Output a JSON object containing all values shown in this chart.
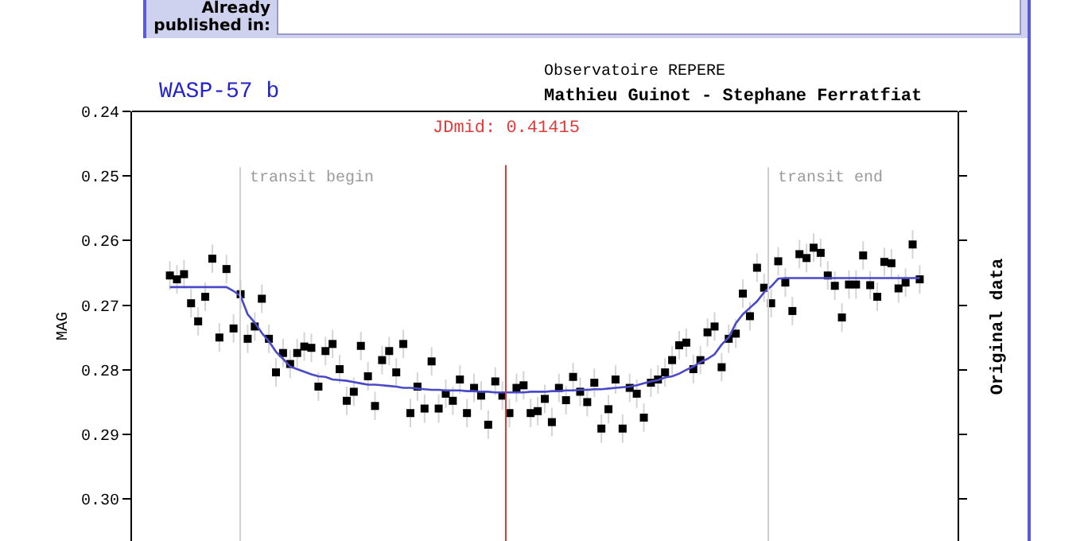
{
  "chart_data": {
    "type": "scatter",
    "title": "WASP-57 b",
    "ylabel": "MAG",
    "y2label": "Original data",
    "annotations": [
      "Already published in:",
      "Observatoire REPERE",
      "Mathieu Guinot - Stephane Ferratfiat",
      "JDmid: 0.41415",
      "transit begin",
      "transit end"
    ],
    "categories": [
      null,
      null,
      null,
      null,
      null,
      null,
      null,
      null,
      null,
      null,
      null,
      null,
      null,
      null,
      null,
      null,
      null,
      null,
      null,
      null,
      null,
      null,
      null,
      null,
      null,
      null,
      null,
      null,
      null,
      null,
      null,
      null,
      null,
      null,
      null,
      null,
      null,
      null,
      null,
      null,
      null,
      null,
      null,
      null,
      null,
      null,
      null,
      null,
      null,
      null,
      null,
      null,
      null,
      null,
      null,
      null,
      null,
      null,
      null,
      null,
      null,
      null,
      null,
      null,
      null,
      null,
      null,
      null,
      null,
      null,
      null,
      null,
      null,
      null,
      null,
      null,
      null,
      null,
      null,
      null,
      null,
      null,
      null,
      null,
      null,
      null,
      null,
      null,
      null,
      null,
      null,
      null,
      null,
      null,
      null,
      null,
      null,
      null,
      null,
      null,
      null,
      null,
      null,
      null,
      null,
      null,
      null
    ],
    "series": [
      {
        "color": "#000000",
        "values": [
          0.2654,
          0.266,
          0.2652,
          0.2697,
          0.2725,
          0.2687,
          0.2628,
          0.275,
          0.2644,
          0.2736,
          0.2683,
          0.2752,
          0.2733,
          0.269,
          0.2752,
          0.2804,
          0.2774,
          0.2791,
          0.2774,
          0.2764,
          0.2766,
          0.2826,
          0.2771,
          0.276,
          0.2799,
          0.2848,
          0.2834,
          0.2763,
          0.281,
          0.2856,
          0.2785,
          0.2771,
          0.2804,
          0.276,
          0.2867,
          0.2826,
          0.286,
          0.2787,
          0.286,
          0.2837,
          0.2848,
          0.2815,
          0.2867,
          0.2828,
          0.284,
          0.2885,
          0.2818,
          0.284,
          0.2867,
          0.2828,
          0.2824,
          0.2867,
          0.2864,
          0.2845,
          0.2881,
          0.2828,
          0.2847,
          0.2811,
          0.2834,
          0.285,
          0.282,
          0.2891,
          0.2861,
          0.2815,
          0.2891,
          0.2828,
          0.2837,
          0.2874,
          0.282,
          0.2815,
          0.2804,
          0.2785,
          0.2762,
          0.2758,
          0.2799,
          0.2785,
          0.2742,
          0.2733,
          0.2796,
          0.2752,
          0.2744,
          0.2682,
          0.2717,
          0.2642,
          0.2673,
          0.2697,
          0.2632,
          0.2665,
          0.2709,
          0.2621,
          0.2627,
          0.2611,
          0.2619,
          0.2654,
          0.267,
          0.2719,
          0.2668,
          0.2668,
          0.2623,
          0.2669,
          0.2687,
          0.2633,
          0.2635,
          0.2674,
          0.2665,
          0.2606,
          0.266
        ],
        "errors": [
          0.0022,
          0.0022,
          0.0022,
          0.0022,
          0.0022,
          0.0022,
          0.0022,
          0.0022,
          0.0022,
          0.0022,
          0.0022,
          0.0022,
          0.0022,
          0.0022,
          0.0022,
          0.0022,
          0.0022,
          0.0022,
          0.0022,
          0.0022,
          0.0022,
          0.0022,
          0.0022,
          0.0022,
          0.0022,
          0.0022,
          0.0022,
          0.0022,
          0.0022,
          0.0022,
          0.0022,
          0.0022,
          0.0022,
          0.0022,
          0.0022,
          0.0022,
          0.0022,
          0.0022,
          0.0022,
          0.0022,
          0.0022,
          0.0022,
          0.0022,
          0.0022,
          0.0022,
          0.0022,
          0.0022,
          0.0022,
          0.0022,
          0.0022,
          0.0022,
          0.0022,
          0.0022,
          0.0022,
          0.0022,
          0.0022,
          0.0022,
          0.0022,
          0.0022,
          0.0022,
          0.0022,
          0.0022,
          0.0022,
          0.0022,
          0.0022,
          0.0022,
          0.0022,
          0.0022,
          0.0022,
          0.0022,
          0.0022,
          0.0022,
          0.0022,
          0.0022,
          0.0022,
          0.0022,
          0.0022,
          0.0022,
          0.0022,
          0.0022,
          0.0022,
          0.0022,
          0.0022,
          0.0022,
          0.0022,
          0.0022,
          0.0022,
          0.0022,
          0.0022,
          0.0022,
          0.0022,
          0.0022,
          0.0022,
          0.0022,
          0.0022,
          0.0022,
          0.0022,
          0.0022,
          0.0022,
          0.0022,
          0.0022,
          0.0022,
          0.0022,
          0.0022,
          0.0022,
          0.0022,
          0.0022
        ]
      },
      {
        "type": "line",
        "marker": "none",
        "color": "#4a4ac8",
        "values": [
          0.2672,
          0.2672,
          0.2672,
          0.2672,
          0.2672,
          0.2672,
          0.2672,
          0.2672,
          0.2672,
          0.2678,
          0.2686,
          0.2714,
          0.2727,
          0.2743,
          0.2756,
          0.2772,
          0.2783,
          0.2795,
          0.2799,
          0.2803,
          0.2807,
          0.281,
          0.2811,
          0.2815,
          0.2816,
          0.2817,
          0.2819,
          0.2821,
          0.2823,
          0.2823,
          0.2824,
          0.2825,
          0.2826,
          0.2828,
          0.2828,
          0.2829,
          0.283,
          0.2831,
          0.2831,
          0.2832,
          0.2832,
          0.2832,
          0.2833,
          0.2833,
          0.2834,
          0.2834,
          0.2835,
          0.2835,
          0.2835,
          0.2835,
          0.2835,
          0.2834,
          0.2834,
          0.2834,
          0.2833,
          0.2833,
          0.2832,
          0.2832,
          0.2831,
          0.2831,
          0.283,
          0.283,
          0.2829,
          0.2828,
          0.2827,
          0.2826,
          0.2824,
          0.2821,
          0.2818,
          0.2816,
          0.2812,
          0.281,
          0.2806,
          0.28,
          0.2795,
          0.2788,
          0.2783,
          0.2776,
          0.2761,
          0.275,
          0.2728,
          0.2714,
          0.2704,
          0.2694,
          0.268,
          0.2671,
          0.2659,
          0.2658,
          0.2658,
          0.2658,
          0.2658,
          0.2658,
          0.2658,
          0.2658,
          0.2658,
          0.2658,
          0.2658,
          0.2658,
          0.2658,
          0.2658,
          0.2658,
          0.2658,
          0.2658,
          0.2658,
          0.2658,
          0.2658,
          0.2658
        ]
      }
    ],
    "ylim": [
      0.3065,
      0.24
    ],
    "yticks": [
      0.24,
      0.25,
      0.26,
      0.27,
      0.28,
      0.29,
      {
        "value": 0.3,
        "label": "0.30"
      }
    ],
    "tick_labels": "y",
    "grid": false,
    "marker": "square",
    "line_style": "solid"
  }
}
